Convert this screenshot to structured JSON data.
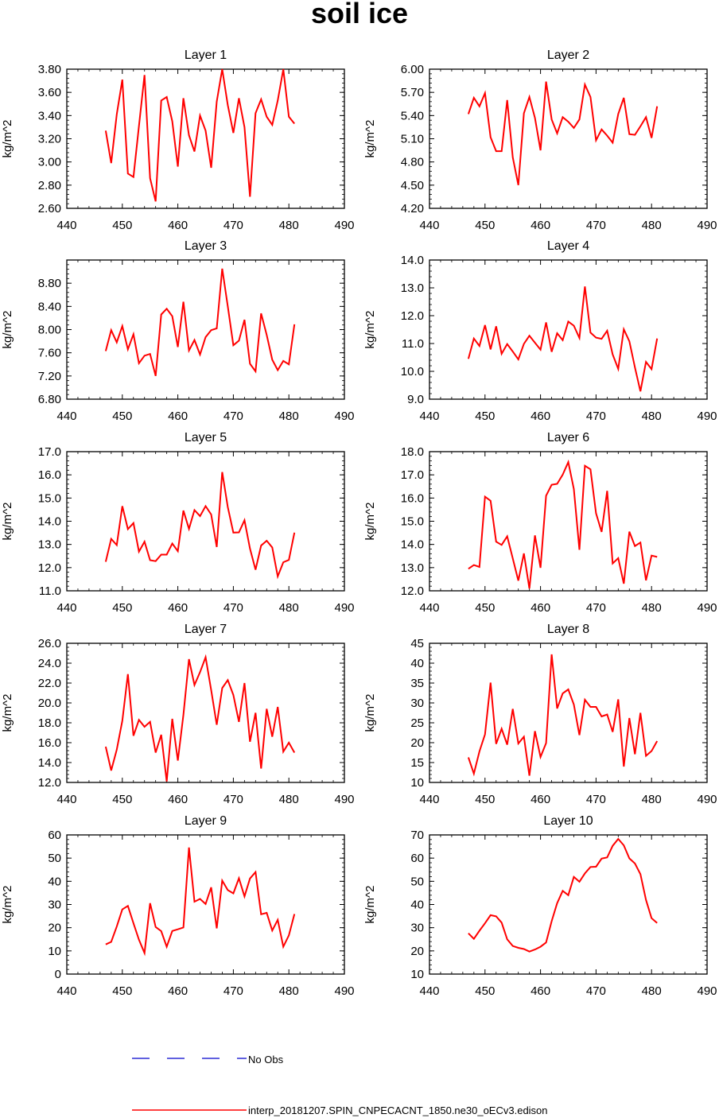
{
  "title": "soil ice",
  "colors": {
    "series": "#ff0000",
    "obs": "#0000cc",
    "axis": "#000000"
  },
  "legend": {
    "obs_label": "No Obs",
    "model_label": "interp_20181207.SPIN_CNPECACNT_1850.ne30_oECv3.edison"
  },
  "chart_data": [
    {
      "type": "line",
      "title": "Layer 1",
      "ylabel": "kg/m^2",
      "xlim": [
        440,
        490
      ],
      "xticks": [
        440,
        450,
        460,
        470,
        480,
        490
      ],
      "ylim": [
        2.6,
        3.8
      ],
      "yticks": [
        "2.60",
        "2.80",
        "3.00",
        "3.20",
        "3.40",
        "3.60",
        "3.80"
      ],
      "series": [
        {
          "name": "interp_20181207.SPIN_CNPECACNT_1850.ne30_oECv3.edison",
          "x_start": 447,
          "values": [
            3.27,
            2.99,
            3.41,
            3.71,
            2.9,
            2.87,
            3.31,
            3.75,
            2.86,
            2.66,
            3.53,
            3.56,
            3.35,
            2.96,
            3.55,
            3.23,
            3.09,
            3.4,
            3.27,
            2.95,
            3.52,
            3.8,
            3.49,
            3.25,
            3.55,
            3.3,
            2.7,
            3.42,
            3.54,
            3.39,
            3.32,
            3.53,
            3.8,
            3.39,
            3.33
          ]
        }
      ]
    },
    {
      "type": "line",
      "title": "Layer 2",
      "ylabel": "kg/m^2",
      "xlim": [
        440,
        490
      ],
      "xticks": [
        440,
        450,
        460,
        470,
        480,
        490
      ],
      "ylim": [
        4.2,
        6.0
      ],
      "yticks": [
        "4.20",
        "4.50",
        "4.80",
        "5.10",
        "5.40",
        "5.70",
        "6.00"
      ],
      "series": [
        {
          "name": "interp_20181207.SPIN_CNPECACNT_1850.ne30_oECv3.edison",
          "x_start": 447,
          "values": [
            5.42,
            5.63,
            5.52,
            5.69,
            5.12,
            4.94,
            4.94,
            5.6,
            4.86,
            4.5,
            5.43,
            5.64,
            5.37,
            4.95,
            5.84,
            5.35,
            5.17,
            5.38,
            5.32,
            5.24,
            5.35,
            5.8,
            5.64,
            5.08,
            5.22,
            5.14,
            5.05,
            5.42,
            5.63,
            5.16,
            5.15,
            5.26,
            5.38,
            5.11,
            5.52
          ]
        }
      ]
    },
    {
      "type": "line",
      "title": "Layer 3",
      "ylabel": "kg/m^2",
      "xlim": [
        440,
        490
      ],
      "xticks": [
        440,
        450,
        460,
        470,
        480,
        490
      ],
      "ylim": [
        6.8,
        9.2
      ],
      "yticks": [
        "6.80",
        "7.20",
        "7.60",
        "8.00",
        "8.40",
        "8.80"
      ],
      "series": [
        {
          "name": "interp_20181207.SPIN_CNPECACNT_1850.ne30_oECv3.edison",
          "x_start": 447,
          "values": [
            7.63,
            7.99,
            7.78,
            8.06,
            7.66,
            7.92,
            7.42,
            7.55,
            7.58,
            7.2,
            8.26,
            8.36,
            8.23,
            7.7,
            8.48,
            7.64,
            7.82,
            7.57,
            7.87,
            7.99,
            8.02,
            9.05,
            8.4,
            7.73,
            7.81,
            8.17,
            7.41,
            7.28,
            8.28,
            7.91,
            7.48,
            7.3,
            7.46,
            7.4,
            8.09
          ]
        }
      ]
    },
    {
      "type": "line",
      "title": "Layer 4",
      "ylabel": "kg/m^2",
      "xlim": [
        440,
        490
      ],
      "xticks": [
        440,
        450,
        460,
        470,
        480,
        490
      ],
      "ylim": [
        9.0,
        14.0
      ],
      "yticks": [
        "9.0",
        "10.0",
        "11.0",
        "12.0",
        "13.0",
        "14.0"
      ],
      "series": [
        {
          "name": "interp_20181207.SPIN_CNPECACNT_1850.ne30_oECv3.edison",
          "x_start": 447,
          "values": [
            10.45,
            11.18,
            10.91,
            11.66,
            10.79,
            11.62,
            10.63,
            10.98,
            10.71,
            10.43,
            10.99,
            11.28,
            11.03,
            10.78,
            11.76,
            10.7,
            11.37,
            11.12,
            11.79,
            11.64,
            11.2,
            13.05,
            11.39,
            11.21,
            11.17,
            11.46,
            10.61,
            10.09,
            11.51,
            11.08,
            10.14,
            9.28,
            10.34,
            10.08,
            11.18
          ]
        }
      ]
    },
    {
      "type": "line",
      "title": "Layer 5",
      "ylabel": "kg/m^2",
      "xlim": [
        440,
        490
      ],
      "xticks": [
        440,
        450,
        460,
        470,
        480,
        490
      ],
      "ylim": [
        11.0,
        17.0
      ],
      "yticks": [
        "11.0",
        "12.0",
        "13.0",
        "14.0",
        "15.0",
        "16.0",
        "17.0"
      ],
      "series": [
        {
          "name": "interp_20181207.SPIN_CNPECACNT_1850.ne30_oECv3.edison",
          "x_start": 447,
          "values": [
            12.25,
            13.24,
            12.97,
            14.65,
            13.66,
            13.92,
            12.69,
            13.12,
            12.32,
            12.28,
            12.56,
            12.56,
            13.04,
            12.71,
            14.46,
            13.67,
            14.48,
            14.22,
            14.65,
            14.29,
            12.89,
            16.12,
            14.61,
            13.51,
            13.52,
            14.04,
            12.82,
            11.91,
            12.95,
            13.16,
            12.87,
            11.62,
            12.23,
            12.33,
            13.51
          ]
        }
      ]
    },
    {
      "type": "line",
      "title": "Layer 6",
      "ylabel": "kg/m^2",
      "xlim": [
        440,
        490
      ],
      "xticks": [
        440,
        450,
        460,
        470,
        480,
        490
      ],
      "ylim": [
        12.0,
        18.0
      ],
      "yticks": [
        "12.0",
        "13.0",
        "14.0",
        "15.0",
        "16.0",
        "17.0",
        "18.0"
      ],
      "series": [
        {
          "name": "interp_20181207.SPIN_CNPECACNT_1850.ne30_oECv3.edison",
          "x_start": 447,
          "values": [
            12.95,
            13.11,
            13.03,
            16.06,
            15.88,
            14.12,
            13.98,
            14.35,
            13.4,
            12.44,
            13.61,
            12.1,
            14.39,
            12.99,
            16.1,
            16.57,
            16.61,
            17.01,
            17.55,
            16.39,
            13.77,
            17.39,
            17.24,
            15.34,
            14.54,
            16.31,
            13.18,
            13.41,
            12.31,
            14.55,
            13.93,
            14.08,
            12.45,
            13.52,
            13.46
          ]
        }
      ]
    },
    {
      "type": "line",
      "title": "Layer 7",
      "ylabel": "kg/m^2",
      "xlim": [
        440,
        490
      ],
      "xticks": [
        440,
        450,
        460,
        470,
        480,
        490
      ],
      "ylim": [
        12.0,
        26.0
      ],
      "yticks": [
        "12.0",
        "14.0",
        "16.0",
        "18.0",
        "20.0",
        "22.0",
        "24.0",
        "26.0"
      ],
      "series": [
        {
          "name": "interp_20181207.SPIN_CNPECACNT_1850.ne30_oECv3.edison",
          "x_start": 447,
          "values": [
            15.6,
            13.2,
            15.3,
            18.2,
            22.9,
            16.7,
            18.3,
            17.6,
            18.1,
            15.0,
            16.8,
            12.1,
            18.4,
            14.2,
            18.8,
            24.4,
            21.8,
            23.1,
            24.6,
            21.3,
            17.8,
            21.5,
            22.3,
            20.8,
            18.1,
            22.0,
            16.1,
            19.0,
            13.4,
            19.4,
            16.6,
            19.6,
            15.1,
            16.0,
            15.0
          ]
        }
      ]
    },
    {
      "type": "line",
      "title": "Layer 8",
      "ylabel": "kg/m^2",
      "xlim": [
        440,
        490
      ],
      "xticks": [
        440,
        450,
        460,
        470,
        480,
        490
      ],
      "ylim": [
        10,
        45
      ],
      "yticks": [
        "10",
        "15",
        "20",
        "25",
        "30",
        "35",
        "40",
        "45"
      ],
      "series": [
        {
          "name": "interp_20181207.SPIN_CNPECACNT_1850.ne30_oECv3.edison",
          "x_start": 447,
          "values": [
            16.3,
            12.2,
            17.8,
            22.1,
            35.1,
            19.7,
            23.5,
            19.5,
            28.5,
            19.8,
            21.5,
            11.7,
            22.9,
            16.4,
            19.9,
            42.2,
            28.6,
            32.4,
            33.4,
            29.6,
            21.9,
            30.8,
            29.0,
            29.0,
            26.6,
            27.1,
            22.7,
            30.9,
            14.0,
            26.2,
            17.1,
            27.5,
            16.7,
            17.9,
            20.4
          ]
        }
      ]
    },
    {
      "type": "line",
      "title": "Layer 9",
      "ylabel": "kg/m^2",
      "xlim": [
        440,
        490
      ],
      "xticks": [
        440,
        450,
        460,
        470,
        480,
        490
      ],
      "ylim": [
        0,
        60
      ],
      "yticks": [
        "0",
        "10",
        "20",
        "30",
        "40",
        "50",
        "60"
      ],
      "series": [
        {
          "name": "interp_20181207.SPIN_CNPECACNT_1850.ne30_oECv3.edison",
          "x_start": 447,
          "values": [
            12.8,
            13.9,
            20.5,
            27.9,
            29.4,
            21.9,
            14.8,
            9.1,
            30.6,
            20.3,
            18.5,
            11.8,
            18.6,
            19.3,
            20.1,
            54.6,
            31.2,
            32.4,
            30.2,
            37.4,
            19.7,
            40.3,
            36.2,
            34.8,
            41.3,
            33.5,
            41.2,
            44.0,
            25.8,
            26.4,
            18.8,
            23.4,
            11.8,
            16.7,
            25.9
          ]
        }
      ]
    },
    {
      "type": "line",
      "title": "Layer 10",
      "ylabel": "kg/m^2",
      "xlim": [
        440,
        490
      ],
      "xticks": [
        440,
        450,
        460,
        470,
        480,
        490
      ],
      "ylim": [
        10,
        70
      ],
      "yticks": [
        "10",
        "20",
        "30",
        "40",
        "50",
        "60",
        "70"
      ],
      "series": [
        {
          "name": "interp_20181207.SPIN_CNPECACNT_1850.ne30_oECv3.edison",
          "x_start": 447,
          "values": [
            27.6,
            25.2,
            28.7,
            31.9,
            35.4,
            34.9,
            32.2,
            25.0,
            22.1,
            21.3,
            20.8,
            19.7,
            20.6,
            21.8,
            23.6,
            32.8,
            40.6,
            45.9,
            44.0,
            51.9,
            49.8,
            53.4,
            56.2,
            56.3,
            59.8,
            60.3,
            65.3,
            68.3,
            65.5,
            59.9,
            57.7,
            53.1,
            42.0,
            34.1,
            32.0
          ]
        }
      ]
    }
  ]
}
